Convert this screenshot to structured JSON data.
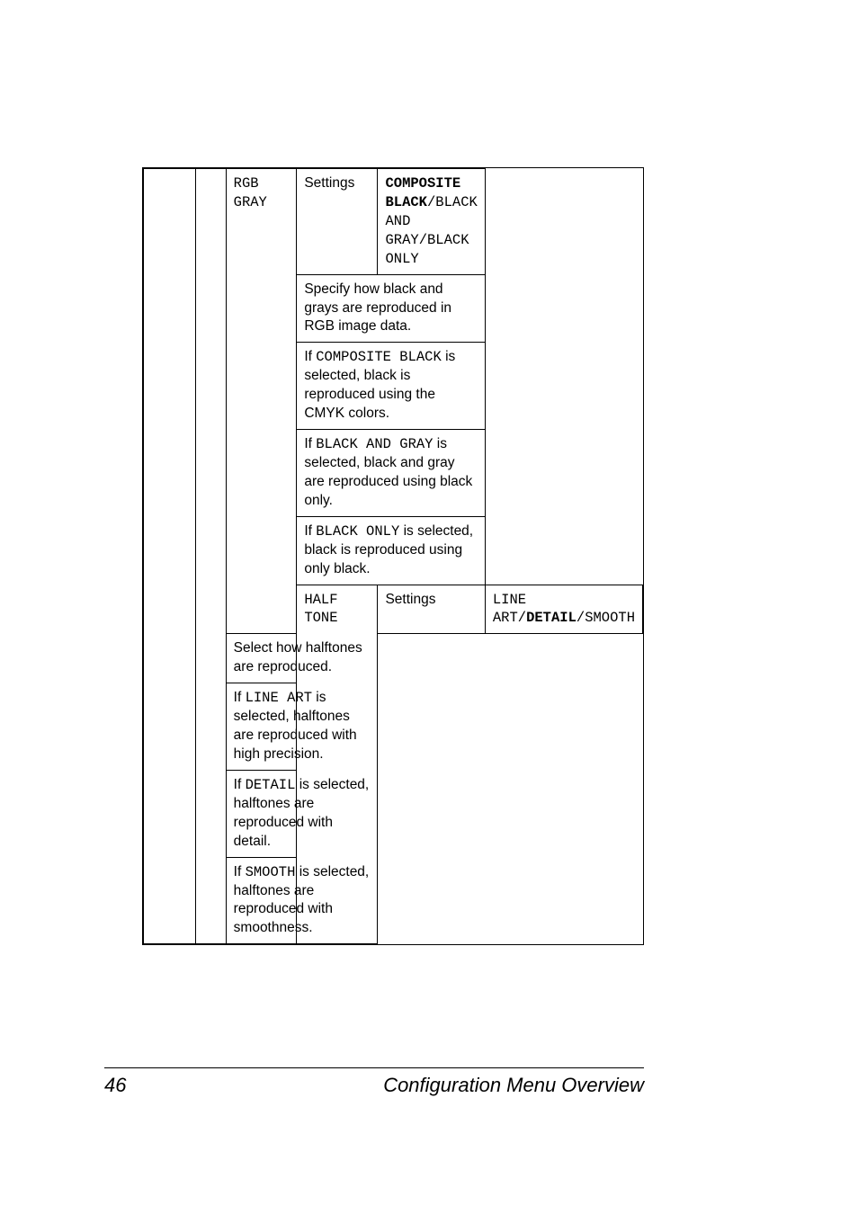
{
  "footer": {
    "page_number": "46",
    "title": "Configuration Menu Overview"
  },
  "table": {
    "rgb_gray": {
      "key": "RGB GRAY",
      "settings_label": "Settings",
      "options_prefix_bold1": "COMPOSITE BLACK",
      "options_sep1": "/",
      "options_plain1": "BLACK AND GRAY",
      "options_sep2": "/",
      "options_plain2": "BLACK ONLY",
      "desc1": "Specify how black and grays are reproduced in RGB image data.",
      "desc2_a": "If ",
      "desc2_code": "COMPOSITE BLACK",
      "desc2_b": " is selected, black is reproduced using the CMYK colors.",
      "desc3_a": "If ",
      "desc3_code": "BLACK AND GRAY",
      "desc3_b": " is selected, black and gray are reproduced using black only.",
      "desc4_a": "If ",
      "desc4_code": "BLACK ONLY",
      "desc4_b": " is selected, black is reproduced using only black."
    },
    "half_tone": {
      "key": "HALF TONE",
      "settings_label": "Settings",
      "opt_plain1": "LINE ART",
      "opt_sep1": "/",
      "opt_bold1": "DETAIL",
      "opt_sep2": "/",
      "opt_plain2": "SMOOTH",
      "desc1": "Select how halftones are reproduced.",
      "desc2_a": "If ",
      "desc2_code": "LINE ART",
      "desc2_b": " is selected, halftones are reproduced with high precision.",
      "desc3_a": "If ",
      "desc3_code": "DETAIL",
      "desc3_b": " is selected, halftones are reproduced with detail.",
      "desc4_a": "If ",
      "desc4_code": "SMOOTH",
      "desc4_b": " is selected, halftones are reproduced with smoothness."
    }
  }
}
